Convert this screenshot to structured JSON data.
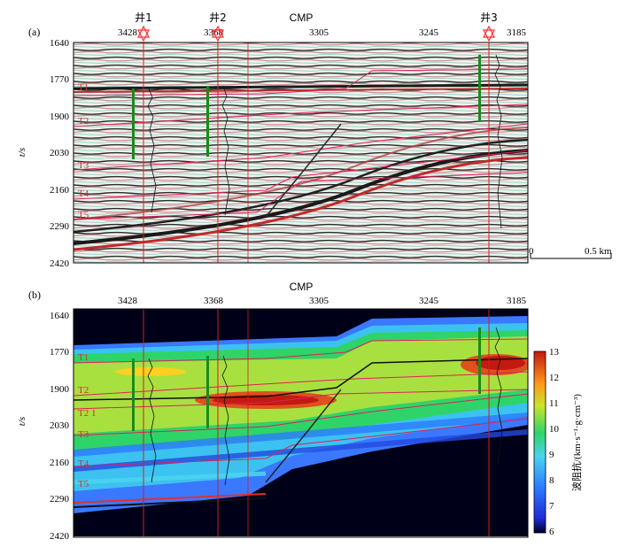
{
  "panel_a": {
    "label": "(a)",
    "x_title": "CMP",
    "cmp_ticks": [
      "3428",
      "3368",
      "3305",
      "3245",
      "3185"
    ],
    "y_title": "t/s",
    "y_ticks": [
      "1640",
      "1770",
      "1900",
      "2030",
      "2160",
      "2290",
      "2420"
    ],
    "wells": [
      "井1",
      "井2",
      "井3"
    ],
    "horizons": [
      "T1",
      "T2",
      "T3",
      "T4",
      "T5"
    ],
    "scale": {
      "start": "0",
      "end": "0.5 km"
    }
  },
  "panel_b": {
    "label": "(b)",
    "x_title": "CMP",
    "cmp_ticks": [
      "3428",
      "3368",
      "3305",
      "3245",
      "3185"
    ],
    "y_title": "t/s",
    "y_ticks": [
      "1640",
      "1770",
      "1900",
      "2030",
      "2160",
      "2290",
      "2420"
    ],
    "horizons": [
      "T1",
      "T2",
      "T2_1",
      "T3",
      "T4",
      "T5"
    ],
    "colorbar": {
      "title": "波阻抗/(km·s⁻¹·g·cm⁻³)",
      "ticks": [
        "13",
        "12",
        "11",
        "10",
        "9",
        "8",
        "7",
        "6"
      ]
    }
  },
  "colors": {
    "horizon_line": "#e0205a",
    "well_line": "#d02020",
    "well_marker": "#ff3030"
  }
}
